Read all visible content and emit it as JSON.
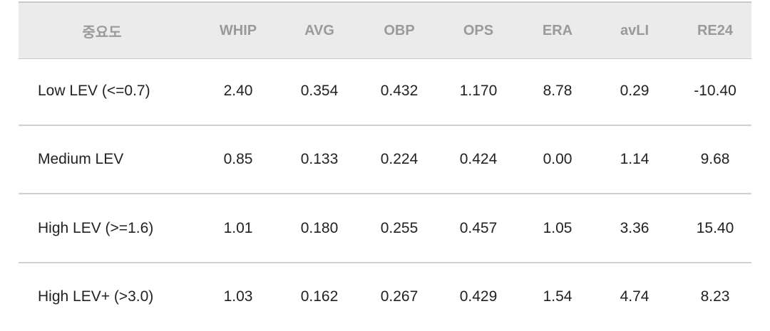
{
  "table": {
    "header": [
      "중요도",
      "WHIP",
      "AVG",
      "OBP",
      "OPS",
      "ERA",
      "avLI",
      "RE24"
    ],
    "rows": [
      [
        "Low LEV (<=0.7)",
        "2.40",
        "0.354",
        "0.432",
        "1.170",
        "8.78",
        "0.29",
        "-10.40"
      ],
      [
        "Medium LEV",
        "0.85",
        "0.133",
        "0.224",
        "0.424",
        "0.00",
        "1.14",
        "9.68"
      ],
      [
        "High LEV (>=1.6)",
        "1.01",
        "0.180",
        "0.255",
        "0.457",
        "1.05",
        "3.36",
        "15.40"
      ],
      [
        "High LEV+ (>3.0)",
        "1.03",
        "0.162",
        "0.267",
        "0.429",
        "1.54",
        "4.74",
        "8.23"
      ]
    ]
  }
}
